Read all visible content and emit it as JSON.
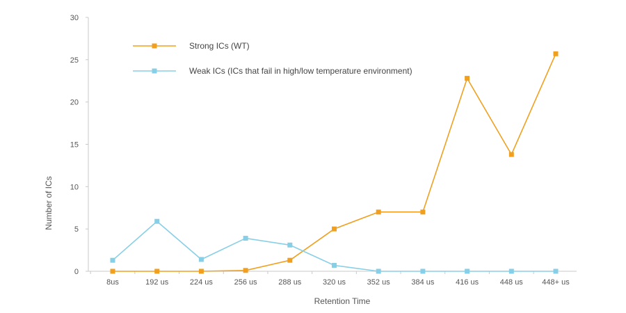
{
  "chart_data": {
    "type": "line",
    "title": "",
    "xlabel": "Retention Time",
    "ylabel": "Number of ICs",
    "categories": [
      "8us",
      "192 us",
      "224 us",
      "256 us",
      "288 us",
      "320 us",
      "352 us",
      "384 us",
      "416 us",
      "448 us",
      "448+ us"
    ],
    "y_ticks": [
      0,
      5,
      10,
      15,
      20,
      25,
      30
    ],
    "y_tick_labels": [
      "0",
      "5",
      "10",
      "15",
      "20",
      "25",
      "30"
    ],
    "ylim": [
      0,
      30
    ],
    "grid": false,
    "legend_position": "top-left",
    "series": [
      {
        "name": "Strong ICs (WT)",
        "color": "#f0a01e",
        "marker": "square",
        "values": [
          0,
          0,
          0,
          0.1,
          1.3,
          5,
          7,
          7,
          22.8,
          13.8,
          25.7
        ]
      },
      {
        "name": "Weak ICs (ICs that fail in high/low temperature environment)",
        "color": "#87cfe6",
        "marker": "square",
        "values": [
          1.3,
          5.9,
          1.4,
          3.9,
          3.1,
          0.7,
          0,
          0,
          0,
          0,
          0
        ]
      }
    ]
  }
}
